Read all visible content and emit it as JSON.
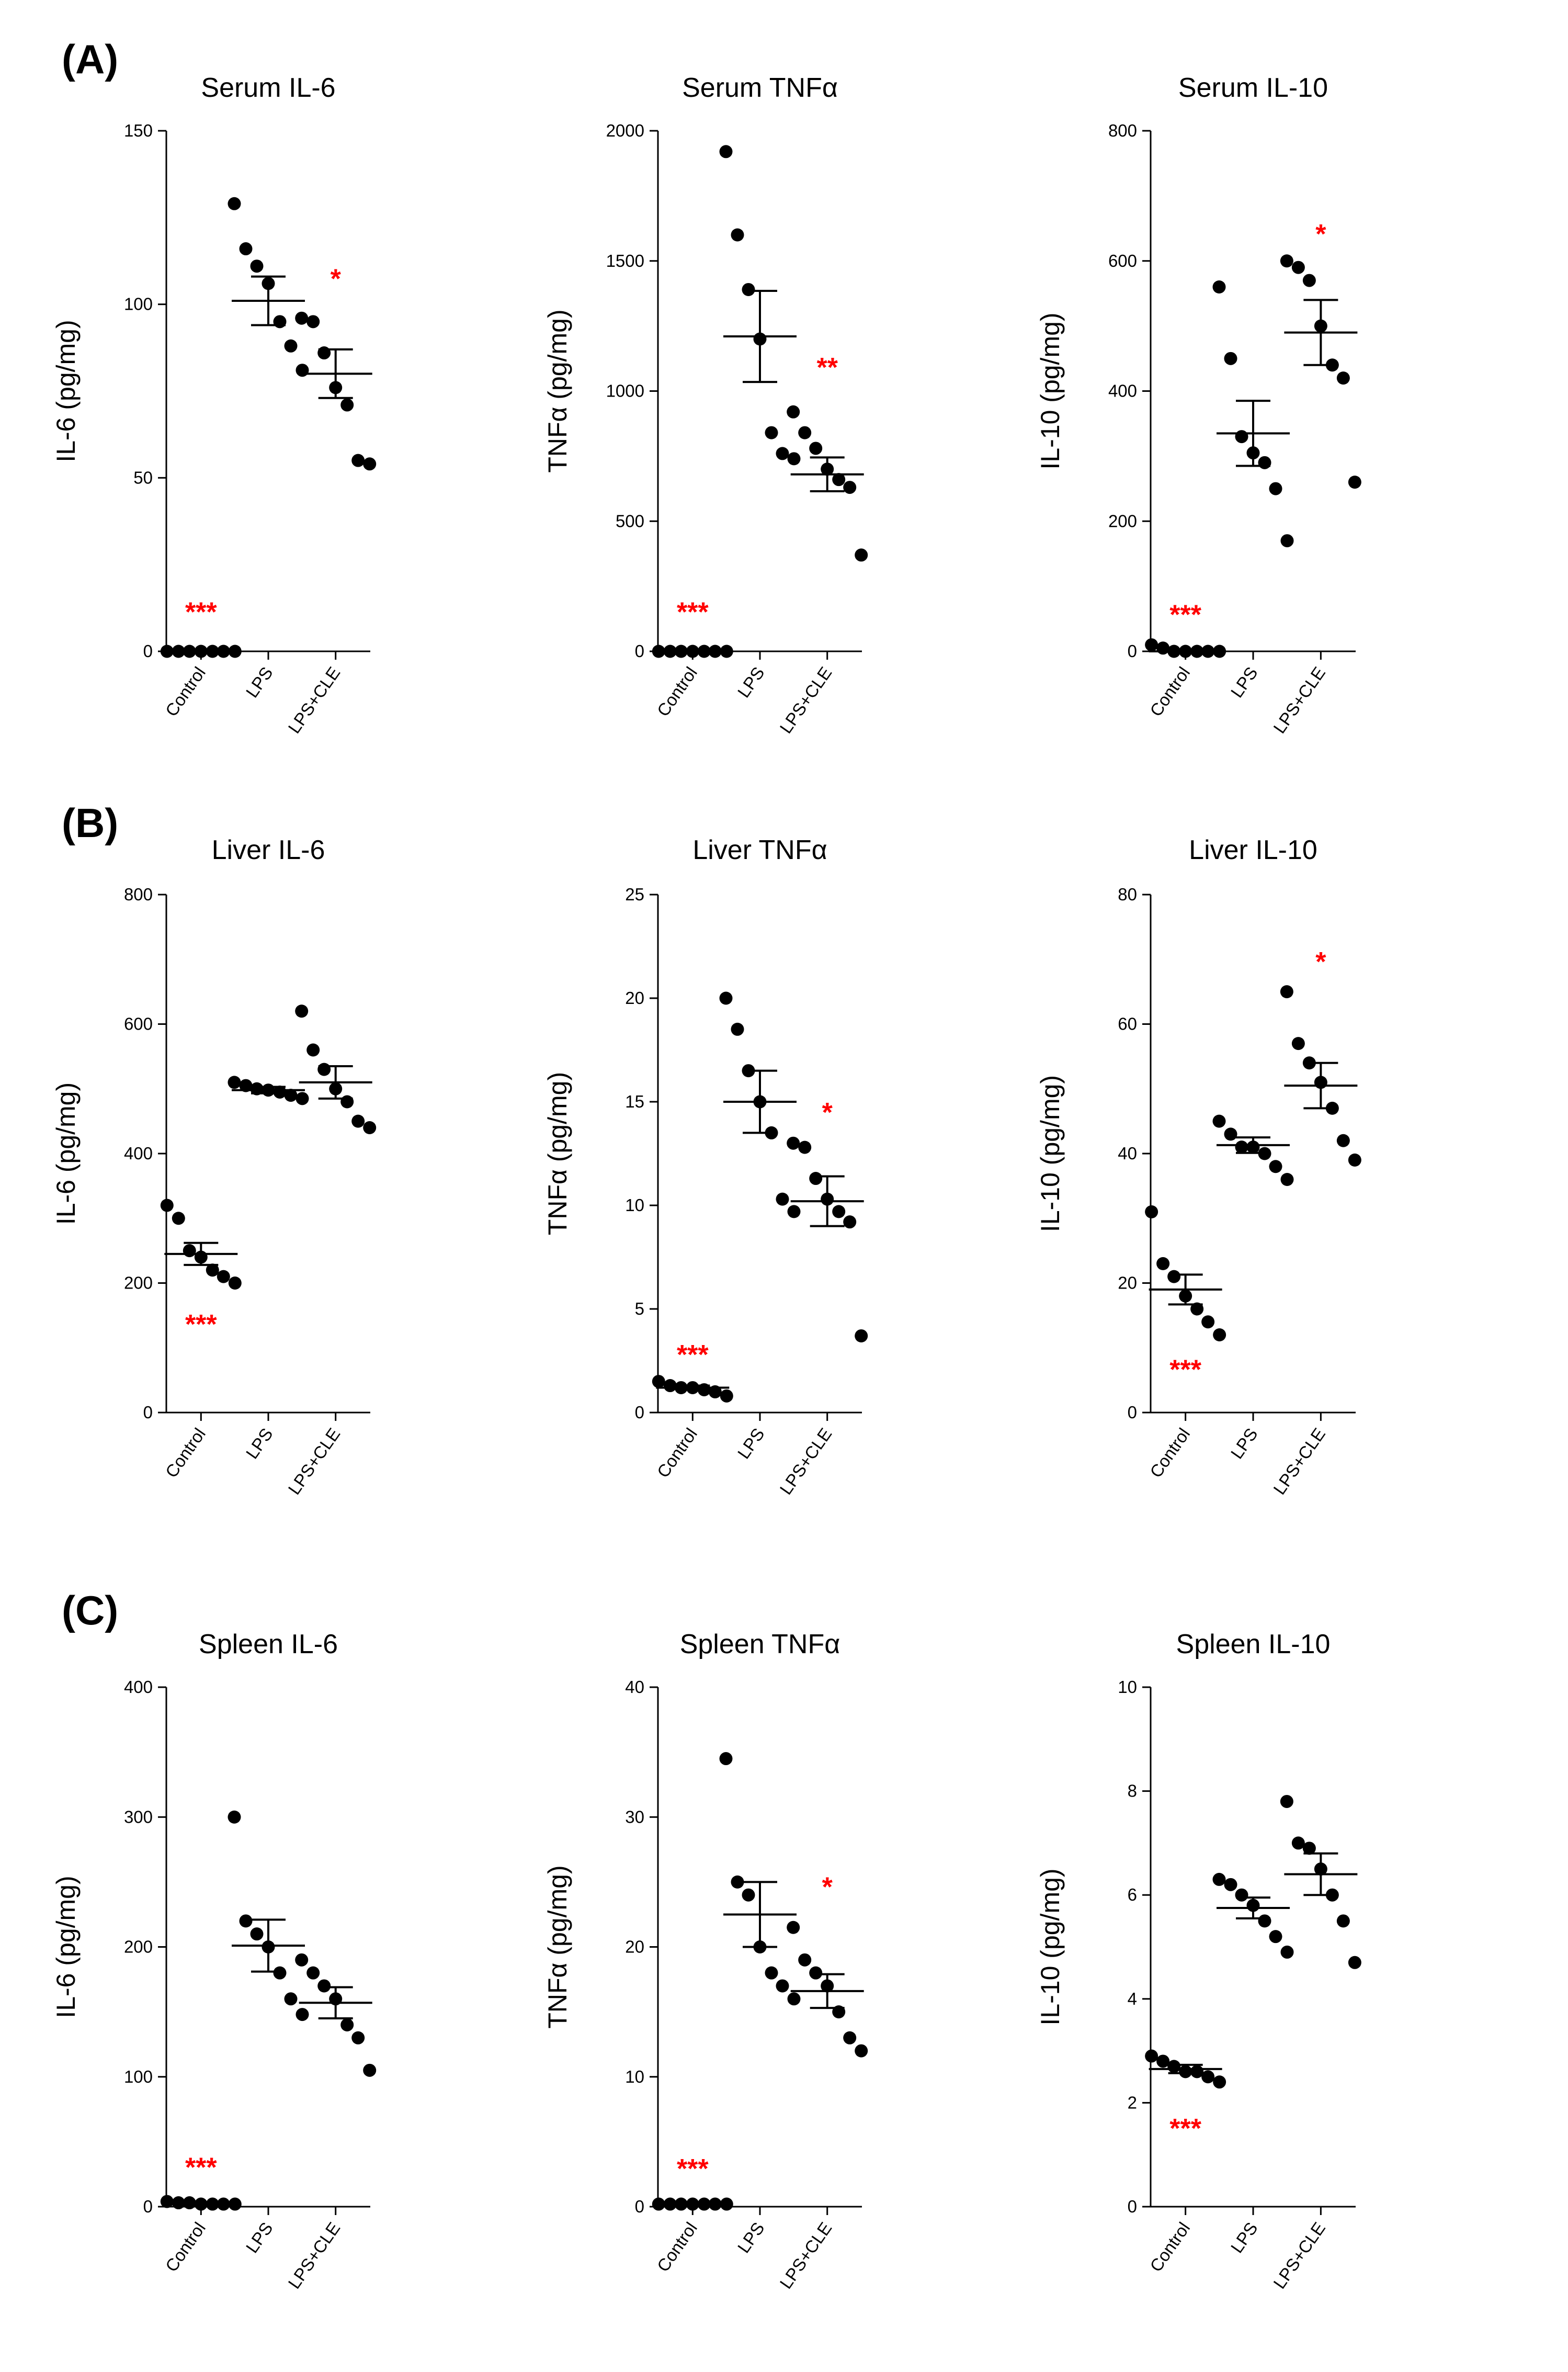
{
  "colors": {
    "ink": "#000000",
    "significance": "#ff0000"
  },
  "panels": [
    {
      "letter": "(A)"
    },
    {
      "letter": "(B)"
    },
    {
      "letter": "(C)"
    }
  ],
  "chart_data": [
    {
      "type": "scatter",
      "title": "Serum IL-6",
      "ylabel": "IL-6 (pg/mg)",
      "ylim": [
        0,
        150
      ],
      "yticks": [
        0,
        50,
        100,
        150
      ],
      "categories": [
        "Control",
        "LPS",
        "LPS+CLE"
      ],
      "points": [
        [
          0,
          0,
          0,
          0,
          0,
          0,
          0
        ],
        [
          129,
          116,
          111,
          106,
          95,
          88,
          81
        ],
        [
          96,
          95,
          86,
          76,
          71,
          55,
          54
        ]
      ],
      "means": [
        0,
        101,
        80
      ],
      "sem": [
        0,
        7,
        7
      ],
      "significance": [
        {
          "group": 0,
          "text": "***",
          "value": 12
        },
        {
          "group": 2,
          "text": "*",
          "value": 108
        }
      ]
    },
    {
      "type": "scatter",
      "title": "Serum TNFα",
      "ylabel": "TNFα (pg/mg)",
      "ylim": [
        0,
        2000
      ],
      "yticks": [
        0,
        500,
        1000,
        1500,
        2000
      ],
      "categories": [
        "Control",
        "LPS",
        "LPS+CLE"
      ],
      "points": [
        [
          0,
          0,
          0,
          0,
          0,
          0,
          0
        ],
        [
          1920,
          1600,
          1390,
          1200,
          840,
          760,
          740
        ],
        [
          920,
          840,
          780,
          700,
          660,
          630,
          370
        ]
      ],
      "means": [
        0,
        1210,
        680
      ],
      "sem": [
        0,
        175,
        65
      ],
      "significance": [
        {
          "group": 0,
          "text": "***",
          "value": 160
        },
        {
          "group": 2,
          "text": "**",
          "value": 1100
        }
      ]
    },
    {
      "type": "scatter",
      "title": "Serum IL-10",
      "ylabel": "IL-10 (pg/mg)",
      "ylim": [
        0,
        800
      ],
      "yticks": [
        0,
        200,
        400,
        600,
        800
      ],
      "categories": [
        "Control",
        "LPS",
        "LPS+CLE"
      ],
      "points": [
        [
          10,
          5,
          0,
          0,
          0,
          0,
          0
        ],
        [
          560,
          450,
          330,
          305,
          290,
          250,
          170
        ],
        [
          600,
          590,
          570,
          500,
          440,
          420,
          260
        ]
      ],
      "means": [
        0,
        335,
        490
      ],
      "sem": [
        0,
        50,
        50
      ],
      "significance": [
        {
          "group": 0,
          "text": "***",
          "value": 60
        },
        {
          "group": 2,
          "text": "*",
          "value": 645
        }
      ]
    },
    {
      "type": "scatter",
      "title": "Liver IL-6",
      "ylabel": "IL-6 (pg/mg)",
      "ylim": [
        0,
        800
      ],
      "yticks": [
        0,
        200,
        400,
        600,
        800
      ],
      "categories": [
        "Control",
        "LPS",
        "LPS+CLE"
      ],
      "points": [
        [
          320,
          300,
          250,
          240,
          220,
          210,
          200
        ],
        [
          510,
          505,
          500,
          498,
          495,
          490,
          485
        ],
        [
          620,
          560,
          530,
          500,
          480,
          450,
          440
        ]
      ],
      "means": [
        245,
        498,
        510
      ],
      "sem": [
        17,
        5,
        25
      ],
      "significance": [
        {
          "group": 0,
          "text": "***",
          "value": 140,
          "below": true
        }
      ]
    },
    {
      "type": "scatter",
      "title": "Liver TNFα",
      "ylabel": "TNFα (pg/mg)",
      "ylim": [
        0,
        25
      ],
      "yticks": [
        0,
        5,
        10,
        15,
        20,
        25
      ],
      "categories": [
        "Control",
        "LPS",
        "LPS+CLE"
      ],
      "points": [
        [
          1.5,
          1.3,
          1.2,
          1.2,
          1.1,
          1.0,
          0.8
        ],
        [
          20,
          18.5,
          16.5,
          15,
          13.5,
          10.3,
          9.7
        ],
        [
          13,
          12.8,
          11.3,
          10.3,
          9.7,
          9.2,
          3.7
        ]
      ],
      "means": [
        1.2,
        15,
        10.2
      ],
      "sem": [
        0.1,
        1.5,
        1.2
      ],
      "significance": [
        {
          "group": 0,
          "text": "***",
          "value": 2.9
        },
        {
          "group": 2,
          "text": "*",
          "value": 14.6
        }
      ]
    },
    {
      "type": "scatter",
      "title": "Liver IL-10",
      "ylabel": "IL-10 (pg/mg)",
      "ylim": [
        0,
        80
      ],
      "yticks": [
        0,
        20,
        40,
        60,
        80
      ],
      "categories": [
        "Control",
        "LPS",
        "LPS+CLE"
      ],
      "points": [
        [
          31,
          23,
          21,
          18,
          16,
          14,
          12
        ],
        [
          45,
          43,
          41,
          41,
          40,
          38,
          36
        ],
        [
          65,
          57,
          54,
          51,
          47,
          42,
          39
        ]
      ],
      "means": [
        19,
        41.3,
        50.5
      ],
      "sem": [
        2.3,
        1.2,
        3.5
      ],
      "significance": [
        {
          "group": 0,
          "text": "***",
          "value": 7,
          "below": true
        },
        {
          "group": 2,
          "text": "*",
          "value": 70
        }
      ]
    },
    {
      "type": "scatter",
      "title": "Spleen IL-6",
      "ylabel": "IL-6 (pg/mg)",
      "ylim": [
        0,
        400
      ],
      "yticks": [
        0,
        100,
        200,
        300,
        400
      ],
      "categories": [
        "Control",
        "LPS",
        "LPS+CLE"
      ],
      "points": [
        [
          4,
          3,
          3,
          2,
          2,
          2,
          2
        ],
        [
          300,
          220,
          210,
          200,
          180,
          160,
          148
        ],
        [
          190,
          180,
          170,
          160,
          140,
          130,
          105
        ]
      ],
      "means": [
        2,
        201,
        157
      ],
      "sem": [
        1,
        20,
        12
      ],
      "significance": [
        {
          "group": 0,
          "text": "***",
          "value": 32
        }
      ]
    },
    {
      "type": "scatter",
      "title": "Spleen TNFα",
      "ylabel": "TNFα (pg/mg)",
      "ylim": [
        0,
        40
      ],
      "yticks": [
        0,
        10,
        20,
        30,
        40
      ],
      "categories": [
        "Control",
        "LPS",
        "LPS+CLE"
      ],
      "points": [
        [
          0.2,
          0.2,
          0.2,
          0.2,
          0.2,
          0.2,
          0.2
        ],
        [
          34.5,
          25,
          24,
          20,
          18,
          17,
          16
        ],
        [
          21.5,
          19,
          18,
          17,
          15,
          13,
          12
        ]
      ],
      "means": [
        0.2,
        22.5,
        16.6
      ],
      "sem": [
        0.05,
        2.5,
        1.3
      ],
      "significance": [
        {
          "group": 0,
          "text": "***",
          "value": 3.1
        },
        {
          "group": 2,
          "text": "*",
          "value": 24.8
        }
      ]
    },
    {
      "type": "scatter",
      "title": "Spleen IL-10",
      "ylabel": "IL-10 (pg/mg)",
      "ylim": [
        0,
        10
      ],
      "yticks": [
        0,
        2,
        4,
        6,
        8,
        10
      ],
      "categories": [
        "Control",
        "LPS",
        "LPS+CLE"
      ],
      "points": [
        [
          2.9,
          2.8,
          2.7,
          2.6,
          2.6,
          2.5,
          2.4
        ],
        [
          6.3,
          6.2,
          6.0,
          5.8,
          5.5,
          5.2,
          4.9
        ],
        [
          7.8,
          7.0,
          6.9,
          6.5,
          6.0,
          5.5,
          4.7
        ]
      ],
      "means": [
        2.65,
        5.75,
        6.4
      ],
      "sem": [
        0.08,
        0.2,
        0.4
      ],
      "significance": [
        {
          "group": 0,
          "text": "***",
          "value": 1.55,
          "below": true
        }
      ]
    }
  ]
}
